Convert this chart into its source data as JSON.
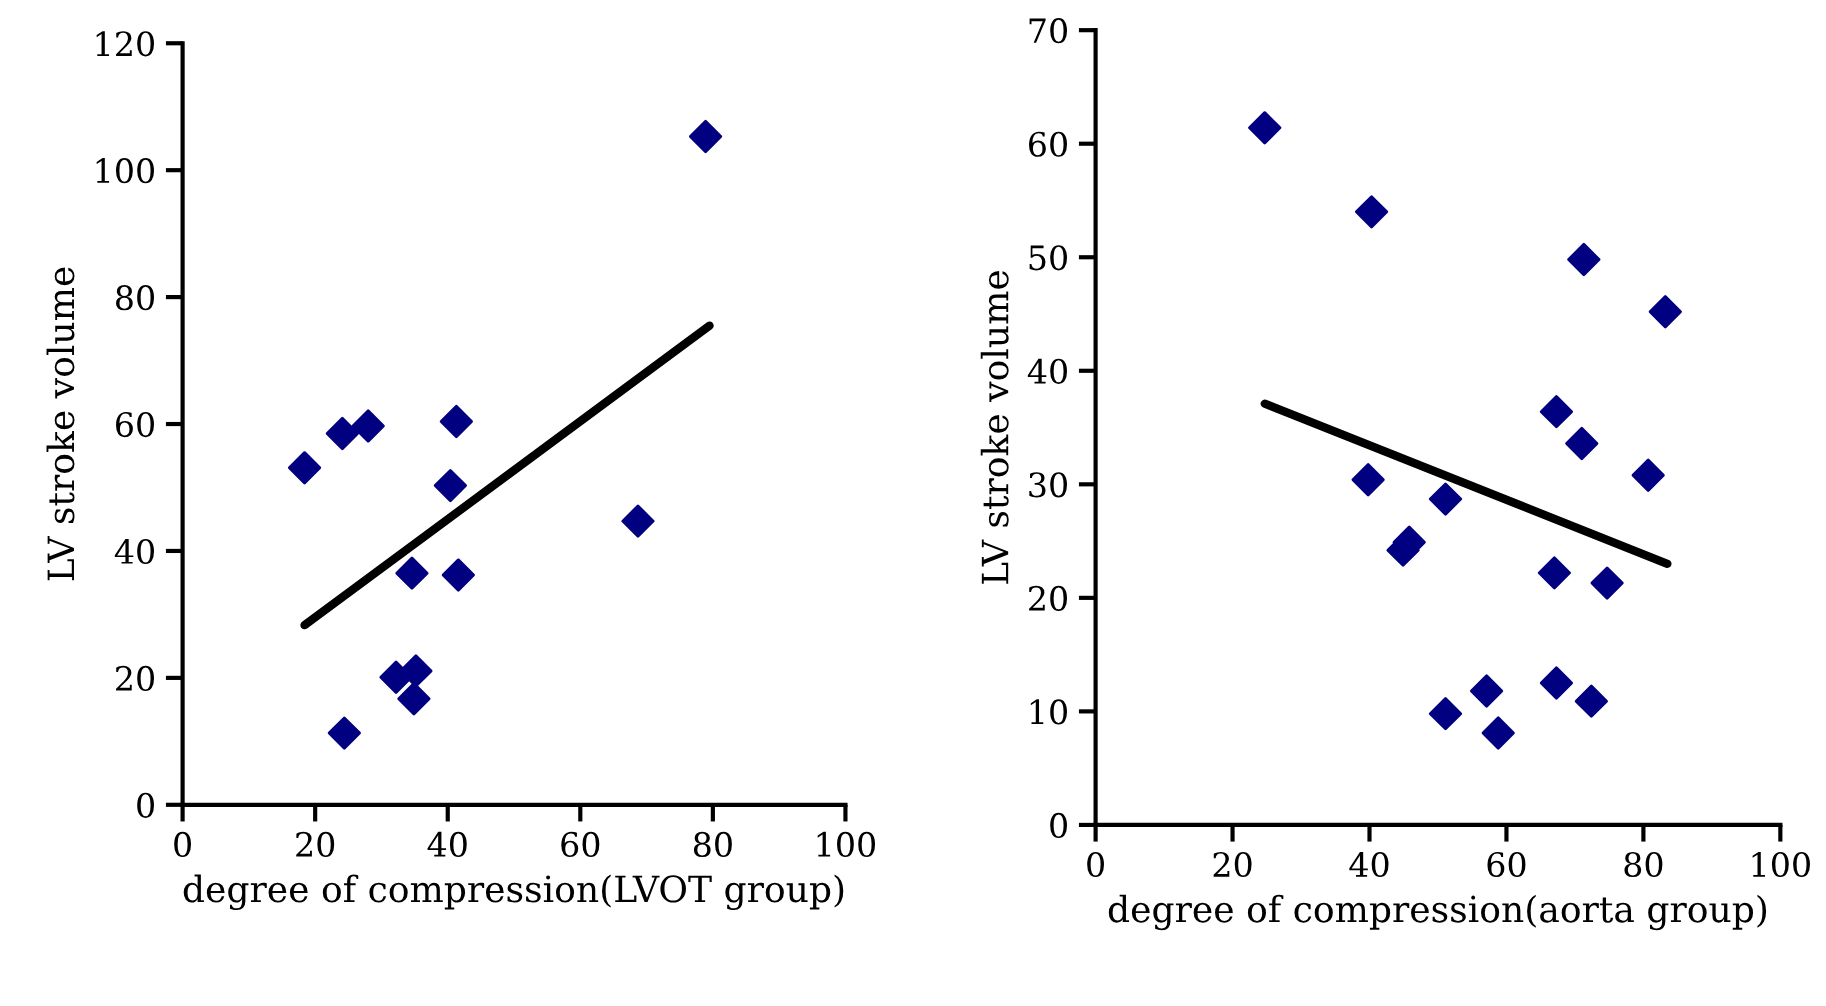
{
  "chart_data": [
    {
      "type": "scatter",
      "xlabel": "degree of compression(LVOT group)",
      "ylabel": "LV stroke volume",
      "xlim": [
        0,
        100
      ],
      "xticks": [
        0,
        20,
        40,
        60,
        80,
        100
      ],
      "ylim": [
        0,
        120
      ],
      "yticks": [
        0,
        20,
        40,
        60,
        80,
        100,
        120
      ],
      "grid": false,
      "series": [
        {
          "marker": "diamond",
          "color": "#000080",
          "x": [
            18.4,
            24.1,
            28.0,
            41.3,
            40.4,
            34.6,
            41.6,
            68.7,
            78.9,
            32.2,
            35.2,
            34.9,
            24.4
          ],
          "values": [
            53.1,
            58.5,
            59.7,
            60.4,
            50.3,
            36.5,
            36.2,
            44.7,
            105.3,
            20.1,
            21.1,
            16.7,
            11.3
          ]
        },
        {
          "type": "line",
          "color": "#000000",
          "x": [
            18.4,
            79.5
          ],
          "values": [
            28.3,
            75.5
          ]
        }
      ]
    },
    {
      "type": "scatter",
      "xlabel": "degree of compression(aorta group)",
      "ylabel": "LV stroke volume",
      "xlim": [
        0,
        100
      ],
      "xticks": [
        0,
        20,
        40,
        60,
        80,
        100
      ],
      "ylim": [
        0,
        70
      ],
      "yticks": [
        0,
        10,
        20,
        30,
        40,
        50,
        60,
        70
      ],
      "grid": false,
      "series": [
        {
          "marker": "diamond",
          "color": "#000080",
          "x": [
            24.7,
            40.3,
            71.3,
            83.2,
            67.3,
            71.0,
            80.7,
            39.8,
            51.1,
            44.9,
            45.8,
            67.0,
            74.7,
            51.1,
            57.1,
            58.8,
            67.3,
            72.4
          ],
          "values": [
            61.4,
            54.0,
            49.8,
            45.2,
            36.4,
            33.6,
            30.8,
            30.4,
            28.7,
            24.2,
            24.9,
            22.2,
            21.3,
            9.8,
            11.8,
            8.1,
            12.5,
            10.9
          ]
        },
        {
          "type": "line",
          "color": "#000000",
          "x": [
            24.7,
            83.5
          ],
          "values": [
            37.1,
            23.0
          ]
        }
      ]
    }
  ]
}
